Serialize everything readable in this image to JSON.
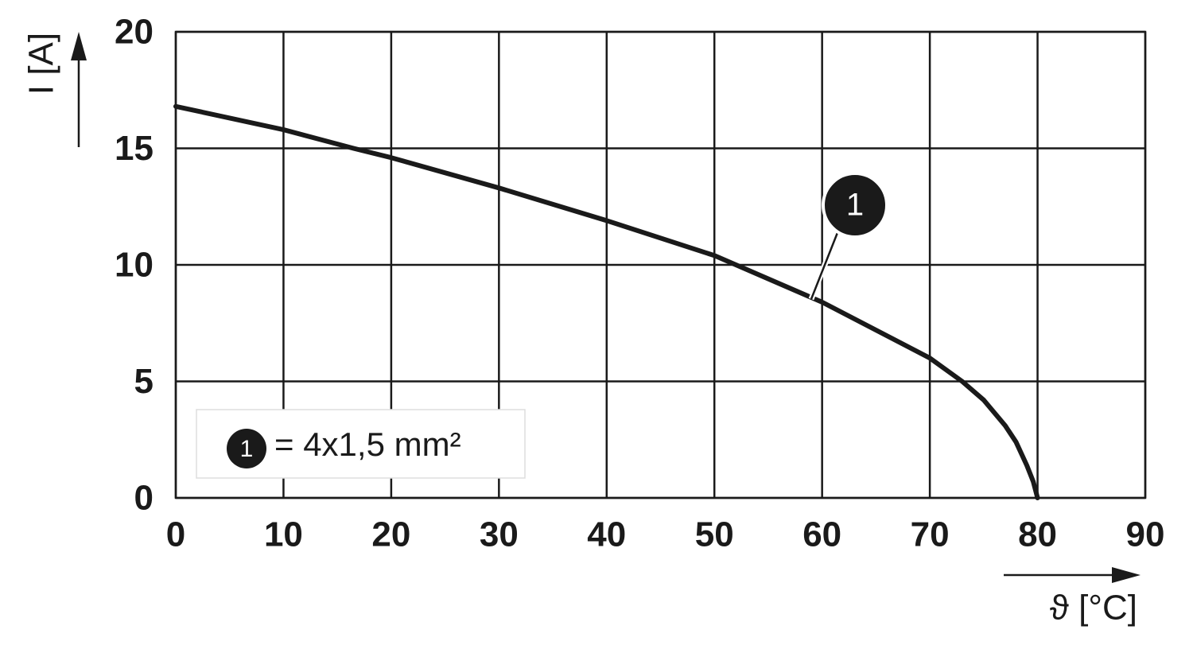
{
  "chart_data": {
    "type": "line",
    "x_label": "ϑ [°C]",
    "y_label": "I [A]",
    "x": [
      0,
      10,
      16.5,
      20,
      30,
      40,
      50,
      60,
      70,
      73,
      75,
      77,
      78,
      79,
      79.6,
      80
    ],
    "series": [
      {
        "name": "= 4x1,5 mm²",
        "label": "1",
        "color": "#1a1a1a",
        "values": [
          16.8,
          15.8,
          15,
          14.6,
          13.3,
          11.9,
          10.4,
          8.4,
          6.0,
          5,
          4.2,
          3.1,
          2.4,
          1.4,
          0.7,
          0
        ]
      }
    ],
    "xlim": [
      0,
      90
    ],
    "ylim": [
      0,
      20
    ],
    "xticks": [
      0,
      10,
      20,
      30,
      40,
      50,
      60,
      70,
      80,
      90
    ],
    "yticks": [
      0,
      5,
      10,
      15,
      20
    ],
    "grid": true
  }
}
